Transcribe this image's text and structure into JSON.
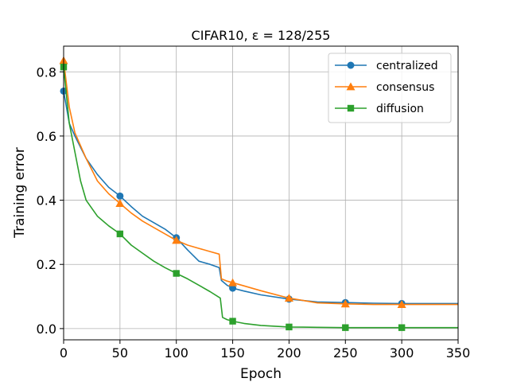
{
  "chart_data": {
    "type": "line",
    "title": "CIFAR10, ε = 128/255",
    "xlabel": "Epoch",
    "ylabel": "Training error",
    "xlim": [
      0,
      350
    ],
    "ylim": [
      -0.035,
      0.88
    ],
    "xticks": [
      0,
      50,
      100,
      150,
      200,
      250,
      300,
      350
    ],
    "xtick_labels": [
      "0",
      "50",
      "100",
      "150",
      "200",
      "250",
      "300",
      "350"
    ],
    "yticks": [
      0.0,
      0.2,
      0.4,
      0.6,
      0.8
    ],
    "ytick_labels": [
      "0.0",
      "0.2",
      "0.4",
      "0.6",
      "0.8"
    ],
    "grid": true,
    "legend_position": "top-right",
    "series": [
      {
        "name": "centralized",
        "color": "#1f77b4",
        "marker": "circle",
        "x": [
          0,
          5,
          10,
          20,
          30,
          40,
          50,
          60,
          70,
          80,
          90,
          100,
          110,
          120,
          130,
          138,
          140,
          145,
          150,
          160,
          175,
          200,
          225,
          250,
          275,
          300,
          325,
          350
        ],
        "y": [
          0.74,
          0.64,
          0.6,
          0.53,
          0.48,
          0.44,
          0.413,
          0.38,
          0.35,
          0.33,
          0.31,
          0.283,
          0.245,
          0.21,
          0.2,
          0.19,
          0.15,
          0.135,
          0.126,
          0.117,
          0.105,
          0.092,
          0.083,
          0.081,
          0.079,
          0.078,
          0.078,
          0.078
        ],
        "marker_x": [
          0,
          50,
          100,
          150,
          200,
          250,
          300
        ],
        "marker_y": [
          0.74,
          0.413,
          0.283,
          0.126,
          0.092,
          0.081,
          0.078
        ]
      },
      {
        "name": "consensus",
        "color": "#ff7f0e",
        "marker": "triangle",
        "x": [
          0,
          5,
          10,
          20,
          30,
          40,
          50,
          60,
          70,
          80,
          90,
          100,
          110,
          120,
          130,
          138,
          140,
          145,
          150,
          160,
          175,
          200,
          225,
          250,
          275,
          300,
          325,
          350
        ],
        "y": [
          0.835,
          0.69,
          0.61,
          0.53,
          0.46,
          0.42,
          0.39,
          0.36,
          0.335,
          0.315,
          0.295,
          0.275,
          0.26,
          0.25,
          0.24,
          0.232,
          0.155,
          0.148,
          0.143,
          0.133,
          0.118,
          0.095,
          0.08,
          0.077,
          0.075,
          0.075,
          0.075,
          0.075
        ],
        "marker_x": [
          0,
          50,
          100,
          150,
          200,
          250,
          300
        ],
        "marker_y": [
          0.835,
          0.39,
          0.275,
          0.143,
          0.095,
          0.077,
          0.075
        ]
      },
      {
        "name": "diffusion",
        "color": "#2ca02c",
        "marker": "square",
        "x": [
          0,
          5,
          10,
          15,
          20,
          30,
          40,
          50,
          60,
          70,
          80,
          90,
          100,
          110,
          120,
          130,
          139,
          141,
          145,
          150,
          160,
          175,
          200,
          225,
          250,
          275,
          300,
          325,
          350
        ],
        "y": [
          0.815,
          0.64,
          0.55,
          0.46,
          0.4,
          0.35,
          0.32,
          0.295,
          0.26,
          0.235,
          0.21,
          0.19,
          0.172,
          0.155,
          0.135,
          0.115,
          0.095,
          0.035,
          0.028,
          0.023,
          0.016,
          0.01,
          0.005,
          0.004,
          0.003,
          0.003,
          0.003,
          0.003,
          0.003
        ],
        "marker_x": [
          0,
          50,
          100,
          150,
          200,
          250,
          300
        ],
        "marker_y": [
          0.815,
          0.295,
          0.172,
          0.023,
          0.005,
          0.003,
          0.003
        ]
      }
    ]
  }
}
